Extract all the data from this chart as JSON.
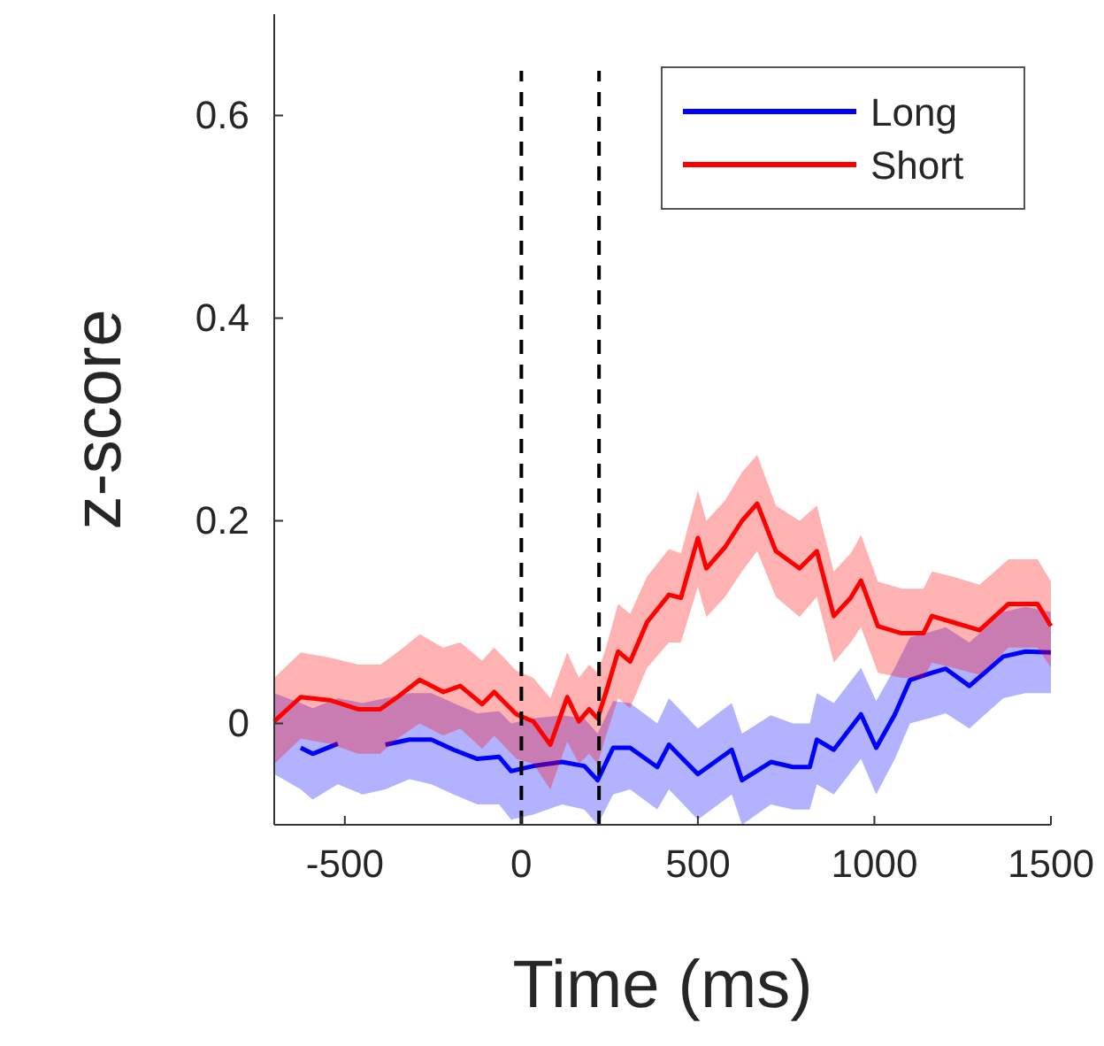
{
  "chart_data": {
    "type": "line",
    "xlabel": "Time (ms)",
    "ylabel": "z-score",
    "xlim": [
      -700,
      1500
    ],
    "ylim": [
      -0.1,
      0.7
    ],
    "xticks": [
      -500,
      0,
      500,
      1000,
      1500
    ],
    "yticks": [
      0,
      0.2,
      0.4,
      0.6
    ],
    "grid": false,
    "legend": "top right",
    "line_style": "solid",
    "marker": "none",
    "ref_lines": [
      {
        "axis": "x",
        "value": 0,
        "color": "#000000",
        "line_style": "dashed"
      },
      {
        "axis": "x",
        "value": 220,
        "color": "#000000",
        "line_style": "dashed"
      }
    ],
    "series": [
      {
        "name": "Long",
        "color": "#0000ff",
        "x": [
          -700,
          -625,
          -591,
          -520,
          -450,
          -385,
          -317,
          -255,
          -192,
          -125,
          -63,
          -29,
          34,
          115,
          178,
          216,
          260,
          308,
          385,
          418,
          500,
          596,
          625,
          707,
          769,
          817,
          837,
          885,
          962,
          1005,
          1058,
          1101,
          1154,
          1202,
          1269,
          1365,
          1428,
          1500
        ],
        "values": [
          null,
          -0.024,
          -0.03,
          -0.02,
          null,
          -0.021,
          -0.016,
          -0.016,
          -0.026,
          -0.035,
          -0.033,
          -0.047,
          -0.042,
          -0.038,
          -0.042,
          -0.056,
          -0.024,
          -0.024,
          -0.043,
          -0.021,
          -0.05,
          -0.026,
          -0.056,
          -0.038,
          -0.043,
          -0.043,
          -0.016,
          -0.026,
          0.009,
          -0.024,
          0.009,
          0.043,
          0.049,
          0.054,
          0.037,
          0.066,
          0.071,
          0.07
        ],
        "lower": [
          -0.05,
          -0.065,
          -0.075,
          -0.06,
          -0.07,
          -0.065,
          -0.055,
          -0.06,
          -0.07,
          -0.08,
          -0.08,
          -0.095,
          -0.09,
          -0.08,
          -0.085,
          -0.1,
          -0.07,
          -0.065,
          -0.085,
          -0.065,
          -0.095,
          -0.07,
          -0.1,
          -0.08,
          -0.085,
          -0.085,
          -0.06,
          -0.07,
          -0.035,
          -0.07,
          -0.035,
          0,
          0.005,
          0.01,
          -0.005,
          0.025,
          0.03,
          0.03
        ],
        "upper": [
          0.03,
          0.02,
          0.015,
          0.025,
          0.02,
          0.025,
          0.03,
          0.03,
          0.02,
          0.01,
          0.012,
          0,
          0.005,
          0.008,
          0.005,
          -0.01,
          0.022,
          0.02,
          0,
          0.025,
          -0.005,
          0.02,
          -0.01,
          0.008,
          0,
          0,
          0.03,
          0.02,
          0.055,
          0.022,
          0.055,
          0.085,
          0.09,
          0.095,
          0.08,
          0.11,
          0.115,
          0.11
        ]
      },
      {
        "name": "Short",
        "color": "#ff0000",
        "x": [
          -700,
          -625,
          -543,
          -462,
          -400,
          -351,
          -288,
          -221,
          -173,
          -111,
          -77,
          -14,
          34,
          82,
          130,
          163,
          192,
          216,
          240,
          274,
          308,
          356,
          418,
          452,
          500,
          524,
          577,
          625,
          668,
          721,
          788,
          837,
          885,
          933,
          962,
          1010,
          1077,
          1139,
          1163,
          1221,
          1298,
          1380,
          1462,
          1500
        ],
        "values": [
          0.002,
          0.026,
          0.023,
          0.014,
          0.014,
          0.026,
          0.043,
          0.031,
          0.037,
          0.019,
          0.031,
          0.009,
          0.002,
          -0.021,
          0.026,
          0.002,
          0.014,
          0.005,
          0.031,
          0.071,
          0.061,
          0.1,
          0.127,
          0.124,
          0.183,
          0.153,
          0.174,
          0.2,
          0.217,
          0.17,
          0.153,
          0.17,
          0.106,
          0.124,
          0.141,
          0.096,
          0.089,
          0.089,
          0.106,
          0.1,
          0.092,
          0.118,
          0.118,
          0.096
        ],
        "lower": [
          -0.04,
          -0.015,
          -0.02,
          -0.03,
          -0.03,
          -0.015,
          0,
          -0.012,
          -0.005,
          -0.025,
          -0.012,
          -0.035,
          -0.04,
          -0.065,
          -0.018,
          -0.04,
          -0.03,
          -0.04,
          -0.012,
          0.025,
          0.015,
          0.055,
          0.08,
          0.08,
          0.135,
          0.105,
          0.125,
          0.15,
          0.17,
          0.125,
          0.105,
          0.125,
          0.06,
          0.08,
          0.095,
          0.05,
          0.045,
          0.045,
          0.06,
          0.055,
          0.048,
          0.075,
          0.075,
          0.055
        ],
        "upper": [
          0.045,
          0.07,
          0.065,
          0.058,
          0.058,
          0.07,
          0.088,
          0.075,
          0.08,
          0.062,
          0.075,
          0.052,
          0.045,
          0.025,
          0.07,
          0.045,
          0.058,
          0.05,
          0.075,
          0.118,
          0.108,
          0.145,
          0.172,
          0.168,
          0.23,
          0.2,
          0.22,
          0.248,
          0.265,
          0.215,
          0.2,
          0.215,
          0.15,
          0.168,
          0.186,
          0.14,
          0.133,
          0.133,
          0.15,
          0.145,
          0.137,
          0.162,
          0.162,
          0.14
        ]
      }
    ]
  }
}
